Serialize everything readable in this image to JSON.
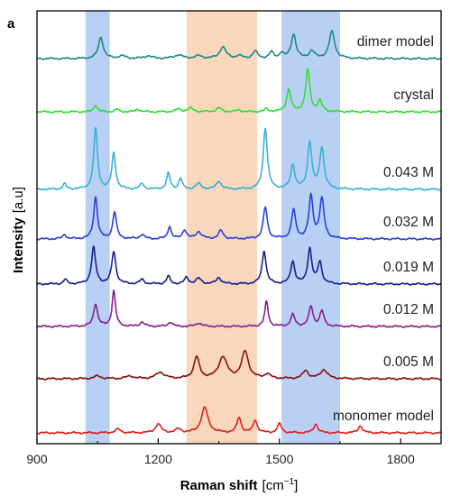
{
  "panel_label": "a",
  "chart_data": {
    "type": "line",
    "xlabel_main": "Raman shift",
    "xlabel_unit": "[cm",
    "xlabel_sup": "−1",
    "xlabel_close": "]",
    "ylabel_main": "Intensity",
    "ylabel_unit": "[a.u]",
    "xlim": [
      900,
      1900
    ],
    "xticks": [
      900,
      1200,
      1500,
      1800
    ],
    "xtick_labels": [
      "900",
      "1200",
      "1500",
      "1800"
    ],
    "highlight_bands": [
      {
        "x0": 1020,
        "x1": 1080,
        "color": "#b9d0f5"
      },
      {
        "x0": 1270,
        "x1": 1445,
        "color": "#f8d7bd"
      },
      {
        "x0": 1505,
        "x1": 1650,
        "color": "#b9d0f5"
      }
    ],
    "series": [
      {
        "name": "dimer model",
        "color": "#1f8a89",
        "baseline": 65,
        "offset": 0,
        "peaks": [
          [
            1058,
            24,
            7
          ],
          [
            1110,
            3,
            10
          ],
          [
            1175,
            3,
            10
          ],
          [
            1250,
            4,
            12
          ],
          [
            1300,
            3,
            10
          ],
          [
            1360,
            13,
            9
          ],
          [
            1400,
            3,
            8
          ],
          [
            1440,
            8,
            7
          ],
          [
            1480,
            7,
            6
          ],
          [
            1505,
            6,
            6
          ],
          [
            1535,
            27,
            7
          ],
          [
            1580,
            8,
            8
          ],
          [
            1630,
            30,
            8
          ]
        ]
      },
      {
        "name": "crystal",
        "color": "#2ee032",
        "baseline": 124,
        "offset": 0,
        "peaks": [
          [
            1045,
            8,
            5
          ],
          [
            1098,
            3,
            5
          ],
          [
            1150,
            3,
            6
          ],
          [
            1250,
            3,
            8
          ],
          [
            1280,
            4,
            8
          ],
          [
            1350,
            4,
            8
          ],
          [
            1400,
            2,
            6
          ],
          [
            1468,
            3,
            6
          ],
          [
            1523,
            25,
            6
          ],
          [
            1570,
            47,
            6
          ],
          [
            1600,
            12,
            6
          ]
        ]
      },
      {
        "name": "0.043 M",
        "color": "#3bb0d4",
        "baseline": 210,
        "offset": 0,
        "peaks": [
          [
            968,
            6,
            5
          ],
          [
            1045,
            68,
            5.5
          ],
          [
            1090,
            40,
            5.5
          ],
          [
            1160,
            6,
            6
          ],
          [
            1225,
            18,
            5
          ],
          [
            1255,
            12,
            5
          ],
          [
            1300,
            6,
            8
          ],
          [
            1350,
            9,
            7
          ],
          [
            1465,
            68,
            6
          ],
          [
            1533,
            27,
            6
          ],
          [
            1575,
            52,
            6
          ],
          [
            1605,
            46,
            6.5
          ]
        ]
      },
      {
        "name": "0.032 M",
        "color": "#2c41d6",
        "baseline": 265,
        "offset": 0,
        "peaks": [
          [
            968,
            5,
            5
          ],
          [
            1045,
            47,
            5.5
          ],
          [
            1092,
            30,
            5.5
          ],
          [
            1160,
            5,
            6
          ],
          [
            1228,
            14,
            5
          ],
          [
            1265,
            10,
            6
          ],
          [
            1300,
            8,
            8
          ],
          [
            1355,
            9,
            7
          ],
          [
            1465,
            35,
            6
          ],
          [
            1535,
            32,
            6
          ],
          [
            1578,
            47,
            6
          ],
          [
            1605,
            44,
            6.5
          ]
        ]
      },
      {
        "name": "0.019 M",
        "color": "#1b1f8a",
        "baseline": 315,
        "offset": 0,
        "peaks": [
          [
            970,
            5,
            5
          ],
          [
            1040,
            41,
            6
          ],
          [
            1090,
            36,
            6
          ],
          [
            1160,
            5,
            6
          ],
          [
            1225,
            9,
            5
          ],
          [
            1270,
            7,
            6
          ],
          [
            1300,
            6,
            8
          ],
          [
            1350,
            7,
            7
          ],
          [
            1462,
            37,
            6
          ],
          [
            1533,
            25,
            6
          ],
          [
            1575,
            39,
            6
          ],
          [
            1600,
            24,
            6
          ]
        ]
      },
      {
        "name": "0.012 M",
        "color": "#8a1e8d",
        "baseline": 362,
        "offset": 0,
        "peaks": [
          [
            1045,
            25,
            6
          ],
          [
            1090,
            40,
            5
          ],
          [
            1160,
            5,
            6
          ],
          [
            1230,
            5,
            6
          ],
          [
            1300,
            4,
            8
          ],
          [
            1468,
            28,
            5
          ],
          [
            1533,
            13,
            6
          ],
          [
            1578,
            22,
            6
          ],
          [
            1605,
            17,
            6
          ]
        ]
      },
      {
        "name": "0.005 M",
        "color": "#8b0f14",
        "baseline": 420,
        "offset": 0,
        "peaks": [
          [
            1050,
            3,
            10
          ],
          [
            1130,
            3,
            10
          ],
          [
            1205,
            7,
            12
          ],
          [
            1295,
            24,
            8
          ],
          [
            1360,
            24,
            12
          ],
          [
            1415,
            30,
            10
          ],
          [
            1470,
            5,
            8
          ],
          [
            1565,
            9,
            8
          ],
          [
            1610,
            10,
            10
          ]
        ]
      },
      {
        "name": "monomer model",
        "color": "#e11f1f",
        "baseline": 480,
        "offset": 0,
        "peaks": [
          [
            1100,
            4,
            8
          ],
          [
            1200,
            10,
            8
          ],
          [
            1250,
            4,
            8
          ],
          [
            1315,
            28,
            10
          ],
          [
            1400,
            17,
            6
          ],
          [
            1440,
            14,
            6
          ],
          [
            1500,
            10,
            6
          ],
          [
            1590,
            10,
            6
          ],
          [
            1700,
            8,
            6
          ]
        ]
      }
    ]
  }
}
